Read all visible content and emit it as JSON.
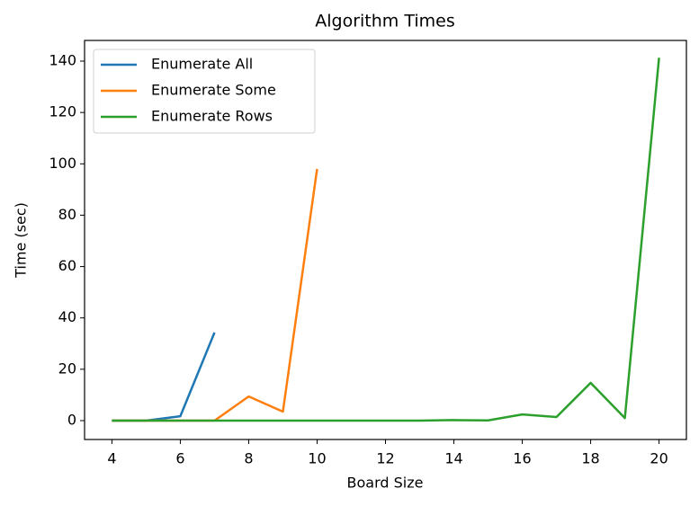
{
  "chart_data": {
    "type": "line",
    "title": "Algorithm Times",
    "x_label": "Board Size",
    "y_label": "Time (sec)",
    "x": [
      4,
      5,
      6,
      7,
      8,
      9,
      10,
      11,
      12,
      13,
      14,
      15,
      16,
      17,
      18,
      19,
      20
    ],
    "series": [
      {
        "name": "Enumerate All",
        "color": "#1f77b4",
        "values": [
          0,
          0,
          1.7,
          34.3,
          null,
          null,
          null,
          null,
          null,
          null,
          null,
          null,
          null,
          null,
          null,
          null,
          null
        ]
      },
      {
        "name": "Enumerate Some",
        "color": "#ff7f0e",
        "values": [
          0,
          0,
          0,
          0,
          9.4,
          3.5,
          98,
          null,
          null,
          null,
          null,
          null,
          null,
          null,
          null,
          null,
          null
        ]
      },
      {
        "name": "Enumerate Rows",
        "color": "#2ca02c",
        "values": [
          0,
          0,
          0,
          0,
          0,
          0,
          0,
          0,
          0,
          0,
          0.2,
          0.1,
          2.4,
          1.4,
          14.7,
          1,
          141.3
        ]
      }
    ],
    "xlim": [
      3.2,
      20.8
    ],
    "ylim": [
      -7.35,
      148.05
    ],
    "xticks": [
      4,
      6,
      8,
      10,
      12,
      14,
      16,
      18,
      20
    ],
    "yticks": [
      0,
      20,
      40,
      60,
      80,
      100,
      120,
      140
    ],
    "legend": "upper-left",
    "grid": false
  }
}
